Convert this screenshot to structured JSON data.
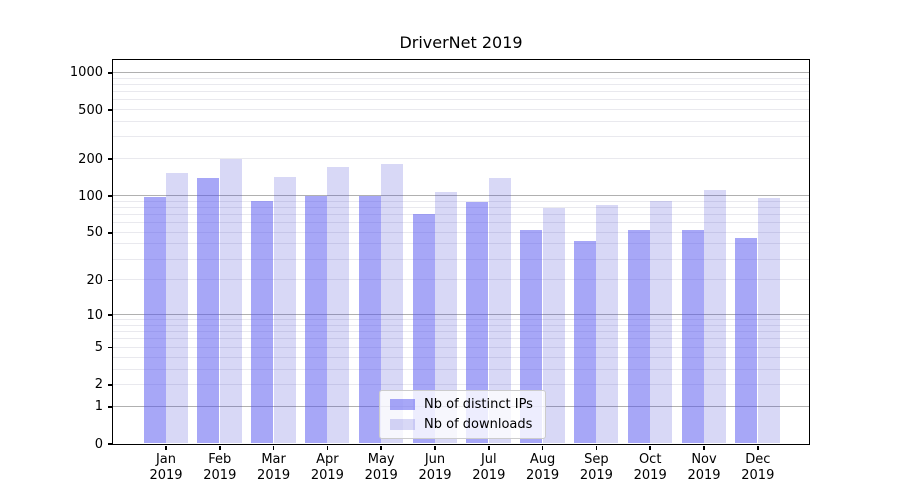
{
  "chart_data": {
    "type": "bar",
    "title": "DriverNet 2019",
    "yscale": "log1p (symlog-like, linear 0-1 then logarithmic)",
    "ylim": [
      0,
      1270
    ],
    "yticks": [
      0,
      1,
      2,
      5,
      10,
      20,
      50,
      100,
      200,
      500,
      1000
    ],
    "grid": "horizontal major + minor, on",
    "legend_position": "lower center inside plot",
    "year": "2019",
    "months": [
      "Jan",
      "Feb",
      "Mar",
      "Apr",
      "May",
      "Jun",
      "Jul",
      "Aug",
      "Sep",
      "Oct",
      "Nov",
      "Dec"
    ],
    "series": [
      {
        "name": "Nb of distinct IPs",
        "color": "rgba(80,80,240,0.5)",
        "values": [
          97,
          138,
          90,
          100,
          100,
          70,
          88,
          52,
          42,
          52,
          52,
          45
        ]
      },
      {
        "name": "Nb of downloads",
        "color": "rgba(60,60,210,0.2)",
        "values": [
          152,
          200,
          141,
          172,
          182,
          107,
          139,
          79,
          84,
          90,
          110,
          95
        ]
      }
    ],
    "colors": {
      "grid_major": "#b0b0b0",
      "grid_minor": "#e9e9ee",
      "axis": "#000000",
      "text": "#000000",
      "legend_border": "#cccccc"
    }
  }
}
